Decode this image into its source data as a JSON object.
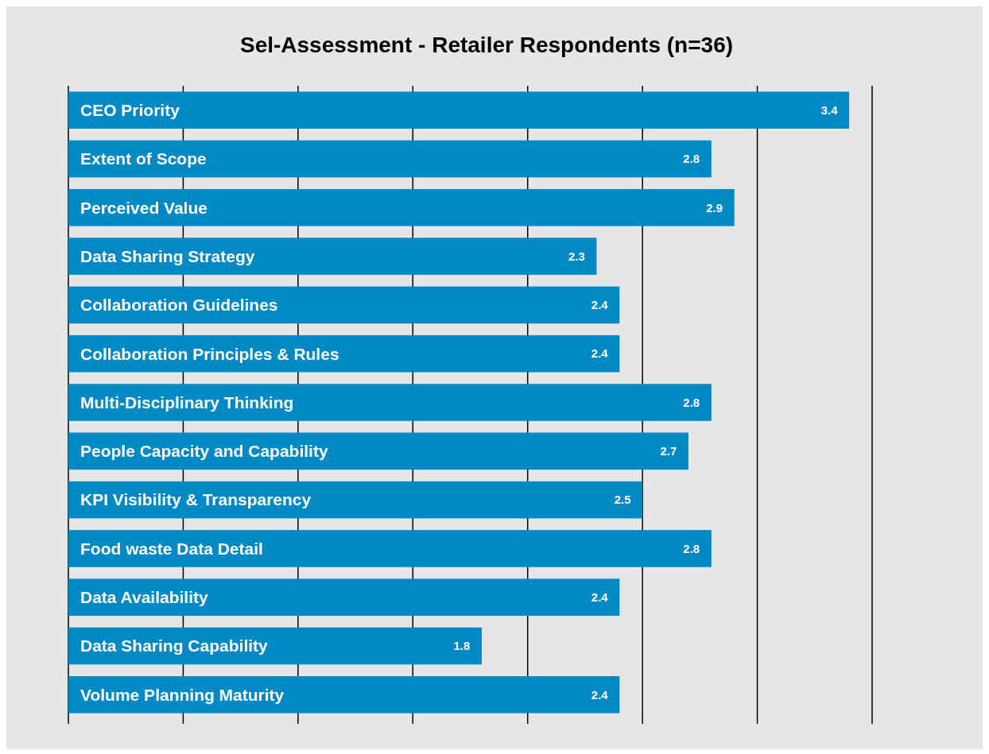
{
  "chart_data": {
    "type": "bar",
    "orientation": "horizontal",
    "title": "Sel-Assessment - Retailer Respondents (n=36)",
    "categories": [
      "CEO Priority",
      "Extent of Scope",
      "Perceived Value",
      "Data Sharing Strategy",
      "Collaboration Guidelines",
      "Collaboration Principles & Rules",
      "Multi-Disciplinary Thinking",
      "People Capacity and Capability",
      "KPI Visibility & Transparency",
      "Food waste Data Detail",
      "Data Availability",
      "Data Sharing Capability",
      "Volume Planning Maturity"
    ],
    "values": [
      3.4,
      2.8,
      2.9,
      2.3,
      2.4,
      2.4,
      2.8,
      2.7,
      2.5,
      2.8,
      2.4,
      1.8,
      2.4
    ],
    "color": "#0089c4",
    "xlim": [
      0,
      3.5
    ],
    "xticks": [
      {
        "value": 0,
        "label": null
      },
      {
        "value": 0.5,
        "label": null
      },
      {
        "value": 1,
        "label": null
      },
      {
        "value": 1.5,
        "label": null
      },
      {
        "value": 2,
        "label": null
      },
      {
        "value": 2.5,
        "label": null
      },
      {
        "value": 3,
        "label": null
      },
      {
        "value": 3.5,
        "label": null
      }
    ],
    "grid": "x",
    "data_labels": true
  }
}
